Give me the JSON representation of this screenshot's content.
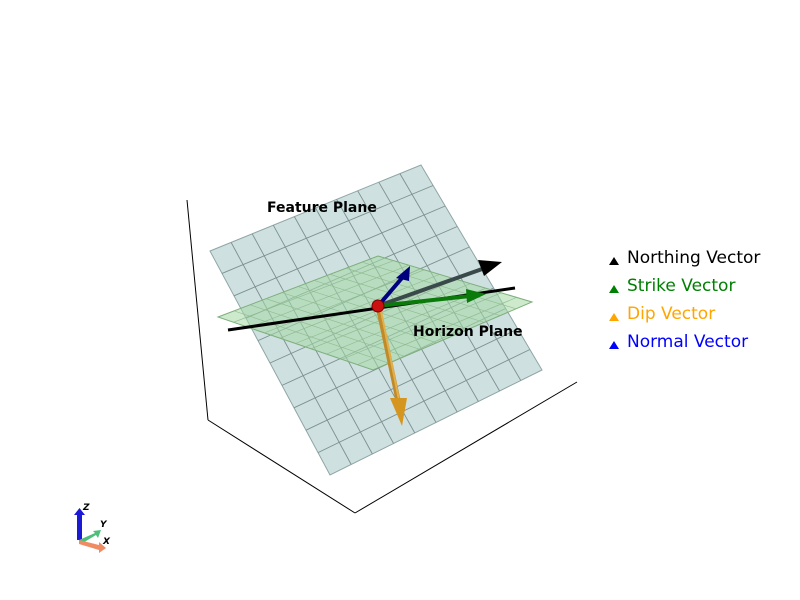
{
  "labels": {
    "feature_plane": "Feature Plane",
    "horizon_plane": "Horizon Plane"
  },
  "legend": [
    {
      "key": "northing",
      "label": "Northing Vector",
      "color": "#000000"
    },
    {
      "key": "strike",
      "label": "Strike Vector",
      "color": "#008000"
    },
    {
      "key": "dip",
      "label": "Dip Vector",
      "color": "#ffa500"
    },
    {
      "key": "normal",
      "label": "Normal Vector",
      "color": "#0000ff"
    }
  ],
  "colors": {
    "feature_plane_fill": "#c6dadb",
    "horizon_plane_fill": "#b6dcb6",
    "northing": "#000000",
    "strike": "#0a7a0a",
    "dip": "#d4961e",
    "normal": "#00007f",
    "origin_point": "#cc1111"
  },
  "orientation_widget": {
    "axes": [
      {
        "letter": "X",
        "color": "#f08c64"
      },
      {
        "letter": "Y",
        "color": "#4dbf7a"
      },
      {
        "letter": "Z",
        "color": "#1a1ad4"
      }
    ]
  }
}
